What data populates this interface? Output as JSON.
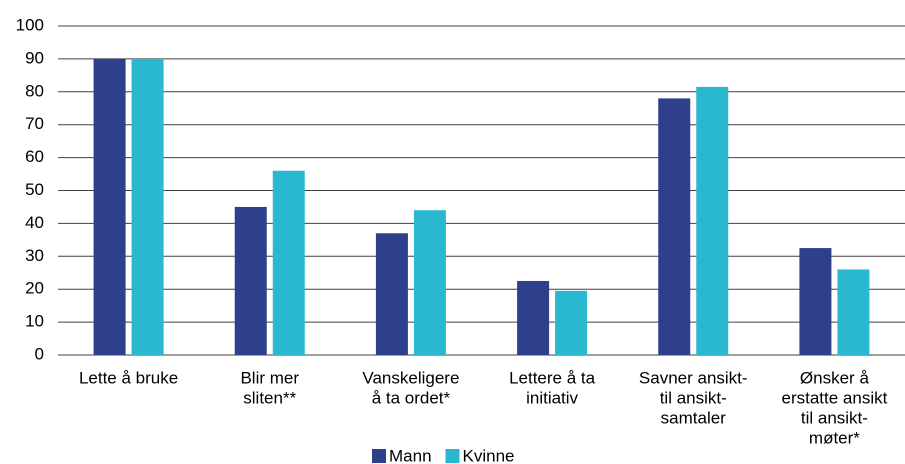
{
  "chart_data": {
    "type": "bar",
    "categories": [
      [
        "Lette å bruke"
      ],
      [
        "Blir mer",
        "sliten**"
      ],
      [
        "Vanskeligere",
        "å ta ordet*"
      ],
      [
        "Lettere å ta",
        "initiativ"
      ],
      [
        "Savner ansikt-",
        "til ansikt-",
        "samtaler"
      ],
      [
        "Ønsker å",
        "erstatte ansikt",
        "til ansikt-",
        "møter*"
      ]
    ],
    "series": [
      {
        "name": "Mann",
        "color": "#2e3f8c",
        "values": [
          90,
          45,
          37,
          22.5,
          78,
          32.5
        ]
      },
      {
        "name": "Kvinne",
        "color": "#2ab8d0",
        "values": [
          90,
          56,
          44,
          19.5,
          81.5,
          26
        ]
      }
    ],
    "ylim": [
      0,
      100
    ],
    "yticks": [
      0,
      10,
      20,
      30,
      40,
      50,
      60,
      70,
      80,
      90,
      100
    ],
    "grid": true,
    "legend": "bottom"
  }
}
